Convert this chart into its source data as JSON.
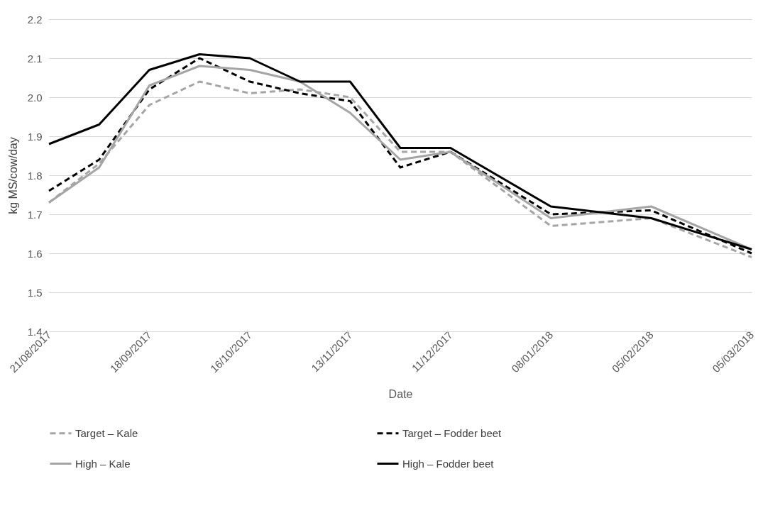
{
  "chart_data": {
    "type": "line",
    "xlabel": "Date",
    "ylabel": "kg MS/cow/day",
    "x": [
      "2017-08-21",
      "2017-09-04",
      "2017-09-18",
      "2017-10-02",
      "2017-10-16",
      "2017-10-30",
      "2017-11-13",
      "2017-11-27",
      "2017-12-11",
      "2018-01-08",
      "2018-02-05",
      "2018-03-05"
    ],
    "series": [
      {
        "name": "Target – Kale",
        "color": "#a5a5a5",
        "line_style": "dashed",
        "values": [
          1.73,
          1.83,
          1.98,
          2.04,
          2.01,
          2.02,
          2.0,
          1.86,
          1.86,
          1.67,
          1.69,
          1.59
        ]
      },
      {
        "name": "Target – Fodder beet",
        "color": "#000000",
        "line_style": "dashed",
        "values": [
          1.76,
          1.84,
          2.02,
          2.1,
          2.04,
          2.01,
          1.99,
          1.82,
          1.86,
          1.7,
          1.71,
          1.6
        ]
      },
      {
        "name": "High – Kale",
        "color": "#a5a5a5",
        "line_style": "solid",
        "values": [
          1.73,
          1.82,
          2.03,
          2.08,
          2.07,
          2.04,
          1.96,
          1.84,
          1.86,
          1.69,
          1.72,
          1.61
        ]
      },
      {
        "name": "High – Fodder beet",
        "color": "#000000",
        "line_style": "solid",
        "values": [
          1.88,
          1.93,
          2.07,
          2.11,
          2.1,
          2.04,
          2.04,
          1.87,
          1.87,
          1.72,
          1.69,
          1.61
        ]
      }
    ],
    "xlim": [
      "2017-08-21",
      "2018-03-05"
    ],
    "xticks": [
      {
        "value": "2017-08-21",
        "label": "21/08/2017"
      },
      {
        "value": "2017-09-18",
        "label": "18/09/2017"
      },
      {
        "value": "2017-10-16",
        "label": "16/10/2017"
      },
      {
        "value": "2017-11-13",
        "label": "13/11/2017"
      },
      {
        "value": "2017-12-11",
        "label": "11/12/2017"
      },
      {
        "value": "2018-01-08",
        "label": "08/01/2018"
      },
      {
        "value": "2018-02-05",
        "label": "05/02/2018"
      },
      {
        "value": "2018-03-05",
        "label": "05/03/2018"
      }
    ],
    "ylim": [
      1.4,
      2.2
    ],
    "yticks": [
      1.4,
      1.5,
      1.6,
      1.7,
      1.8,
      1.9,
      {
        "value": 2,
        "label": "2.0"
      },
      2.1,
      2.2
    ],
    "grid": "y",
    "legend": "bottom",
    "marker": "none"
  }
}
